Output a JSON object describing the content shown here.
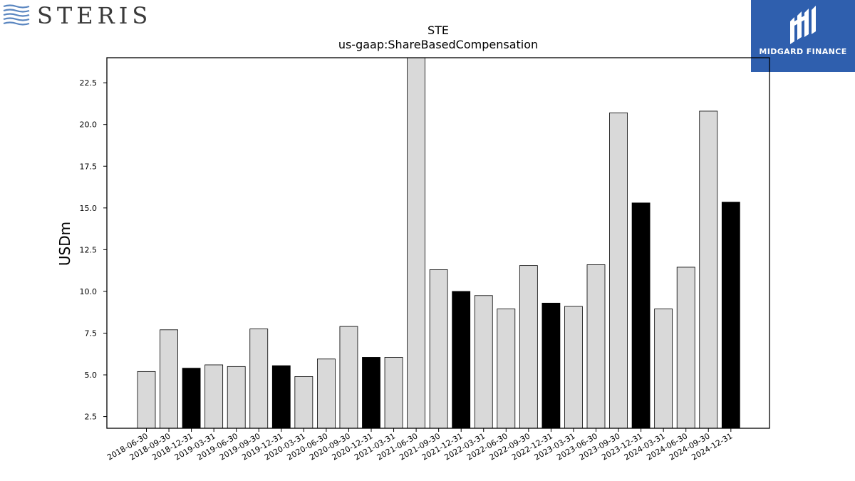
{
  "brand": {
    "name": "STERIS",
    "logo_icon": "waves-icon"
  },
  "partner": {
    "name": "MIDGARD FINANCE",
    "logo_icon": "midgard-m-icon",
    "background": "#2f5fae"
  },
  "colors": {
    "default_bar": "#d9d9d9",
    "highlight_bar": "#000000",
    "bar_edge": "#000000"
  },
  "chart_data": {
    "type": "bar",
    "title": "STE",
    "subtitle": "us-gaap:ShareBasedCompensation",
    "xlabel": "",
    "ylabel": "USDm",
    "ylim": [
      1.8,
      24.0
    ],
    "yticks": [
      2.5,
      5.0,
      7.5,
      10.0,
      12.5,
      15.0,
      17.5,
      20.0,
      22.5
    ],
    "grid": false,
    "legend": "none",
    "categories": [
      "2018-06-30",
      "2018-09-30",
      "2018-12-31",
      "2019-03-31",
      "2019-06-30",
      "2019-09-30",
      "2019-12-31",
      "2020-03-31",
      "2020-06-30",
      "2020-09-30",
      "2020-12-31",
      "2021-03-31",
      "2021-06-30",
      "2021-09-30",
      "2021-12-31",
      "2022-03-31",
      "2022-06-30",
      "2022-09-30",
      "2022-12-31",
      "2023-03-31",
      "2023-06-30",
      "2023-09-30",
      "2023-12-31",
      "2024-03-31",
      "2024-06-30",
      "2024-09-30",
      "2024-12-31"
    ],
    "values": [
      5.2,
      7.7,
      5.4,
      5.6,
      5.5,
      7.75,
      5.55,
      4.9,
      5.95,
      7.9,
      6.05,
      6.05,
      24.0,
      11.3,
      10.0,
      9.75,
      8.95,
      11.55,
      9.3,
      9.1,
      11.6,
      20.7,
      15.3,
      8.95,
      11.45,
      20.8,
      15.35
    ],
    "highlighted": [
      false,
      false,
      true,
      false,
      false,
      false,
      true,
      false,
      false,
      false,
      true,
      false,
      false,
      false,
      true,
      false,
      false,
      false,
      true,
      false,
      false,
      false,
      true,
      false,
      false,
      false,
      true
    ]
  }
}
